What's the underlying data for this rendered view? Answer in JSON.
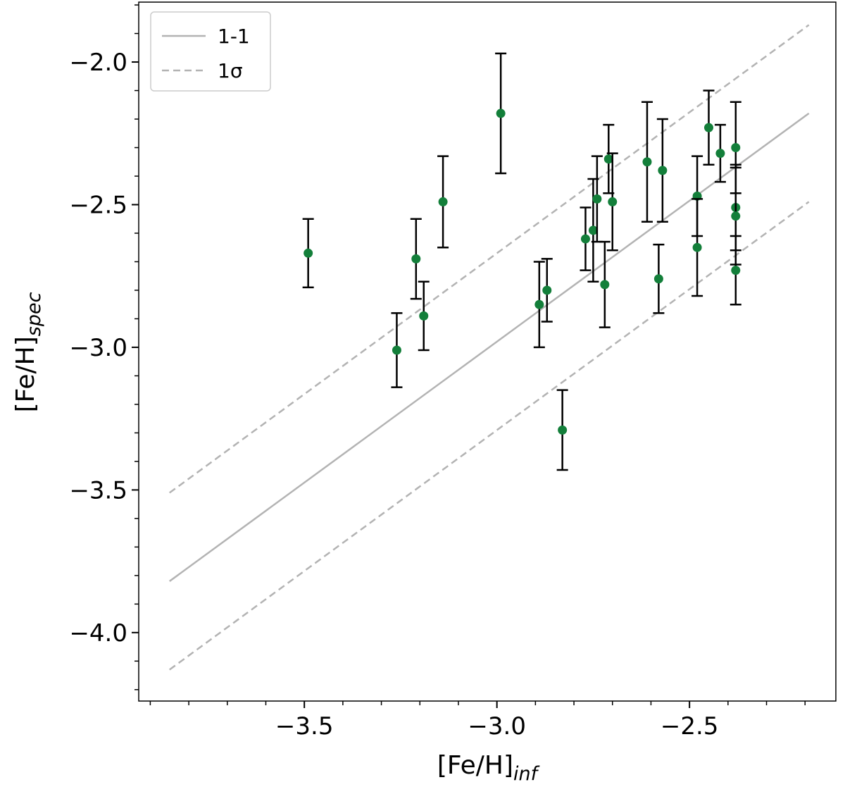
{
  "chart_data": {
    "type": "scatter",
    "xlabel": "[Fe/H]",
    "xlabel_sub": "inf",
    "ylabel": "[Fe/H]",
    "ylabel_sub": "spec",
    "xlim": [
      -3.93,
      -2.12
    ],
    "ylim": [
      -4.24,
      -1.79
    ],
    "xticks": [
      -3.5,
      -3.0,
      -2.5
    ],
    "xtick_labels": [
      "−3.5",
      "−3.0",
      "−2.5"
    ],
    "yticks": [
      -4.0,
      -3.5,
      -3.0,
      -2.5,
      -2.0
    ],
    "ytick_labels": [
      "−4.0",
      "−3.5",
      "−3.0",
      "−2.5",
      "−2.0"
    ],
    "grid": false,
    "legend_position": "top-left",
    "colors": {
      "points": "#137f3a",
      "errorbars": "#000000",
      "lines": "#b3b3b3"
    },
    "reference_lines": [
      {
        "name": "1-1",
        "style": "solid",
        "x": [
          -3.85,
          -2.19
        ],
        "y": [
          -3.82,
          -2.18
        ]
      },
      {
        "name": "1σ",
        "style": "dashed",
        "x": [
          -3.85,
          -2.19
        ],
        "y": [
          -3.51,
          -1.87
        ]
      },
      {
        "name": "",
        "style": "dashed",
        "x": [
          -3.85,
          -2.19
        ],
        "y": [
          -4.13,
          -2.49
        ]
      }
    ],
    "legend": [
      {
        "label": "1-1",
        "style": "solid"
      },
      {
        "label": "1σ",
        "style": "dashed"
      }
    ],
    "points": [
      {
        "x": -3.49,
        "y": -2.67,
        "err": 0.12
      },
      {
        "x": -3.26,
        "y": -3.01,
        "err": 0.13
      },
      {
        "x": -3.21,
        "y": -2.69,
        "err": 0.14
      },
      {
        "x": -3.19,
        "y": -2.89,
        "err": 0.12
      },
      {
        "x": -3.14,
        "y": -2.49,
        "err": 0.16
      },
      {
        "x": -2.99,
        "y": -2.18,
        "err": 0.21
      },
      {
        "x": -2.89,
        "y": -2.85,
        "err": 0.15
      },
      {
        "x": -2.87,
        "y": -2.8,
        "err": 0.11
      },
      {
        "x": -2.83,
        "y": -3.29,
        "err": 0.14
      },
      {
        "x": -2.77,
        "y": -2.62,
        "err": 0.11
      },
      {
        "x": -2.75,
        "y": -2.59,
        "err": 0.18
      },
      {
        "x": -2.74,
        "y": -2.48,
        "err": 0.15
      },
      {
        "x": -2.72,
        "y": -2.78,
        "err": 0.15
      },
      {
        "x": -2.71,
        "y": -2.34,
        "err": 0.12
      },
      {
        "x": -2.7,
        "y": -2.49,
        "err": 0.17
      },
      {
        "x": -2.61,
        "y": -2.35,
        "err": 0.21
      },
      {
        "x": -2.58,
        "y": -2.76,
        "err": 0.12
      },
      {
        "x": -2.57,
        "y": -2.38,
        "err": 0.18
      },
      {
        "x": -2.48,
        "y": -2.47,
        "err": 0.14
      },
      {
        "x": -2.48,
        "y": -2.65,
        "err": 0.17
      },
      {
        "x": -2.45,
        "y": -2.23,
        "err": 0.13
      },
      {
        "x": -2.42,
        "y": -2.32,
        "err": 0.1
      },
      {
        "x": -2.38,
        "y": -2.3,
        "err": 0.16
      },
      {
        "x": -2.38,
        "y": -2.51,
        "err": 0.15
      },
      {
        "x": -2.38,
        "y": -2.54,
        "err": 0.17
      },
      {
        "x": -2.38,
        "y": -2.73,
        "err": 0.12
      }
    ]
  }
}
